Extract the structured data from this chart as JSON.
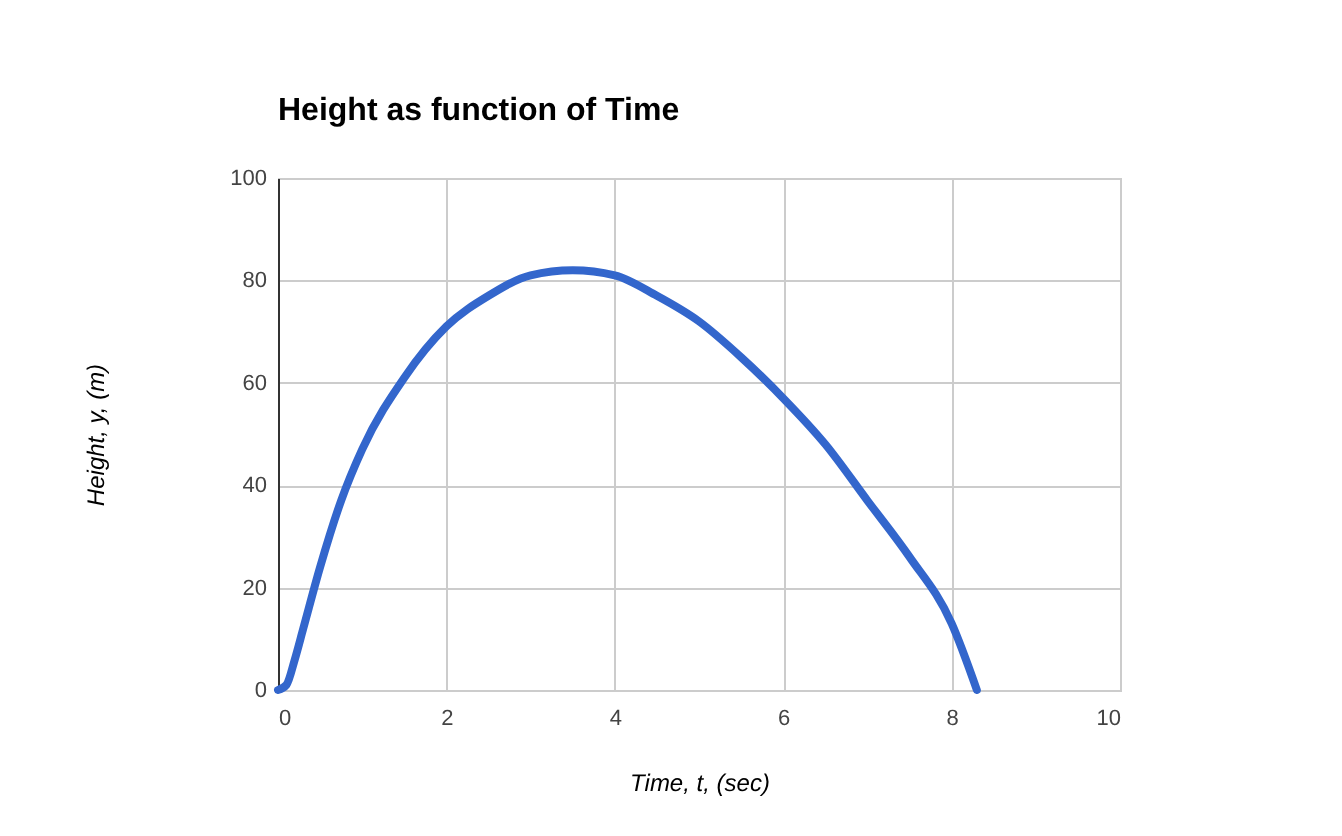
{
  "chart_data": {
    "type": "line",
    "title": "Height as function of Time",
    "xlabel": "Time, t, (sec)",
    "ylabel": "Height, y, (m)",
    "x": [
      0,
      0.1,
      0.2,
      0.3,
      0.5,
      0.75,
      1,
      1.5,
      2,
      2.5,
      3,
      3.5,
      4,
      4.5,
      5,
      5.5,
      6,
      6.5,
      7,
      7.5,
      8,
      8.3
    ],
    "series": [
      {
        "color": "#3366cc",
        "values": [
          0,
          1,
          6,
          12,
          24,
          37,
          47,
          61,
          71,
          77,
          81,
          82,
          81,
          77,
          72,
          65,
          57,
          48,
          37,
          26,
          13,
          0
        ]
      }
    ],
    "xlim": [
      0,
      10
    ],
    "xticks": [
      0,
      2,
      4,
      6,
      8,
      10
    ],
    "ylim": [
      0,
      100
    ],
    "yticks": [
      0,
      20,
      40,
      60,
      80,
      100
    ],
    "grid": true,
    "legend": false,
    "marker": "none",
    "line_style": "solid"
  }
}
